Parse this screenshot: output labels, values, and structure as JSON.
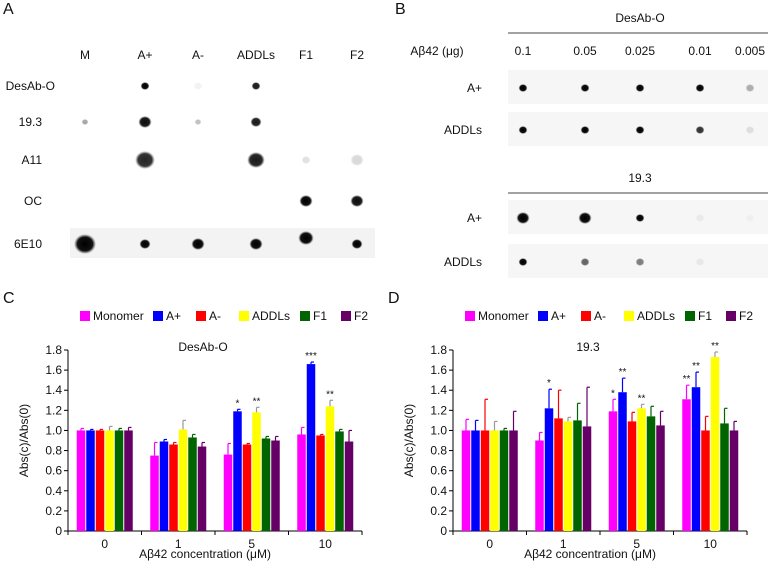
{
  "panel_a": {
    "label": "A",
    "columns": [
      "M",
      "A+",
      "A-",
      "ADDLs",
      "F1",
      "F2"
    ],
    "rows": [
      "DesAb-O",
      "19.3",
      "A11",
      "OC",
      "6E10"
    ],
    "dot_intensity": [
      [
        0,
        1,
        0.05,
        0.9,
        0,
        0
      ],
      [
        0.35,
        0.95,
        0.25,
        0.9,
        0,
        0
      ],
      [
        0,
        0.85,
        0,
        0.9,
        0.12,
        0.15
      ],
      [
        0,
        0,
        0,
        0,
        1,
        0.95
      ],
      [
        1,
        1,
        1,
        1,
        1,
        1
      ]
    ]
  },
  "panel_b": {
    "label": "B",
    "amount_label": "Aβ42 (μg)",
    "amounts": [
      "0.1",
      "0.05",
      "0.025",
      "0.01",
      "0.005"
    ],
    "blots": [
      {
        "title": "DesAb-O",
        "rows": [
          "A+",
          "ADDLs"
        ],
        "dot_intensity": [
          [
            1,
            1,
            1,
            1,
            0.3
          ],
          [
            1,
            1,
            1,
            0.8,
            0.1
          ]
        ]
      },
      {
        "title": "19.3",
        "rows": [
          "A+",
          "ADDLs"
        ],
        "dot_intensity": [
          [
            1,
            1,
            1,
            0.05,
            0.03
          ],
          [
            1,
            0.6,
            0.5,
            0.06,
            0
          ]
        ]
      }
    ]
  },
  "chart_data": [
    {
      "panel": "C",
      "type": "bar",
      "title": "DesAb-O",
      "xlabel": "Aβ42 concentration (μM)",
      "ylabel": "Abs(c)/Abs(0)",
      "ylim": [
        0,
        1.8
      ],
      "yticks": [
        "0",
        "0.2",
        "0.4",
        "0.6",
        "0.8",
        "1.0",
        "1.2",
        "1.4",
        "1.6",
        "1.8"
      ],
      "categories": [
        "0",
        "1",
        "5",
        "10"
      ],
      "legend_position": "top",
      "series": [
        {
          "name": "Monomer",
          "color": "#ff00ff",
          "values": [
            1.0,
            0.75,
            0.76,
            0.96
          ],
          "errors": [
            0.02,
            0.13,
            0.11,
            0.07
          ],
          "stars": [
            "",
            "",
            "",
            ""
          ]
        },
        {
          "name": "A+",
          "color": "#0000ff",
          "values": [
            1.0,
            0.89,
            1.19,
            1.66
          ],
          "errors": [
            0.01,
            0.02,
            0.02,
            0.02
          ],
          "stars": [
            "",
            "",
            "*",
            "***"
          ]
        },
        {
          "name": "A-",
          "color": "#ff0000",
          "values": [
            1.0,
            0.86,
            0.86,
            0.95
          ],
          "errors": [
            0.01,
            0.02,
            0.01,
            0.01
          ],
          "stars": [
            "",
            "",
            "",
            ""
          ]
        },
        {
          "name": "ADDLs",
          "color": "#ffff00",
          "values": [
            1.0,
            1.01,
            1.18,
            1.24
          ],
          "errors": [
            0.04,
            0.09,
            0.05,
            0.06
          ],
          "stars": [
            "",
            "",
            "**",
            "**"
          ]
        },
        {
          "name": "F1",
          "color": "#006400",
          "values": [
            1.0,
            0.93,
            0.92,
            0.99
          ],
          "errors": [
            0.02,
            0.03,
            0.02,
            0.02
          ],
          "stars": [
            "",
            "",
            "",
            ""
          ]
        },
        {
          "name": "F2",
          "color": "#660066",
          "values": [
            1.0,
            0.84,
            0.9,
            0.89
          ],
          "errors": [
            0.03,
            0.04,
            0.04,
            0.11
          ],
          "stars": [
            "",
            "",
            "",
            ""
          ]
        }
      ]
    },
    {
      "panel": "D",
      "type": "bar",
      "title": "19.3",
      "xlabel": "Aβ42 concentration (μM)",
      "ylabel": "Abs(c)/Abs(0)",
      "ylim": [
        0,
        1.8
      ],
      "yticks": [
        "0",
        "0.2",
        "0.4",
        "0.6",
        "0.8",
        "1.0",
        "1.2",
        "1.4",
        "1.6",
        "1.8"
      ],
      "categories": [
        "0",
        "1",
        "5",
        "10"
      ],
      "legend_position": "top",
      "series": [
        {
          "name": "Monomer",
          "color": "#ff00ff",
          "values": [
            1.0,
            0.9,
            1.19,
            1.31
          ],
          "errors": [
            0.11,
            0.08,
            0.12,
            0.14
          ],
          "stars": [
            "",
            "",
            "*",
            "**"
          ]
        },
        {
          "name": "A+",
          "color": "#0000ff",
          "values": [
            1.0,
            1.22,
            1.38,
            1.43
          ],
          "errors": [
            0.1,
            0.19,
            0.14,
            0.15
          ],
          "stars": [
            "",
            "*",
            "**",
            "**"
          ]
        },
        {
          "name": "A-",
          "color": "#ff0000",
          "values": [
            1.0,
            1.12,
            1.09,
            1.0
          ],
          "errors": [
            0.31,
            0.28,
            0.09,
            0.14
          ],
          "stars": [
            "",
            "",
            "",
            ""
          ]
        },
        {
          "name": "ADDLs",
          "color": "#ffff00",
          "values": [
            1.0,
            1.09,
            1.22,
            1.73
          ],
          "errors": [
            0.09,
            0.04,
            0.04,
            0.05
          ],
          "stars": [
            "",
            "",
            "**",
            "**"
          ]
        },
        {
          "name": "F1",
          "color": "#006400",
          "values": [
            1.0,
            1.1,
            1.14,
            1.07
          ],
          "errors": [
            0.02,
            0.17,
            0.1,
            0.15
          ],
          "stars": [
            "",
            "",
            "",
            ""
          ]
        },
        {
          "name": "F2",
          "color": "#660066",
          "values": [
            1.0,
            1.04,
            1.05,
            1.0
          ],
          "errors": [
            0.19,
            0.39,
            0.14,
            0.09
          ],
          "stars": [
            "",
            "",
            "",
            ""
          ]
        }
      ]
    }
  ]
}
